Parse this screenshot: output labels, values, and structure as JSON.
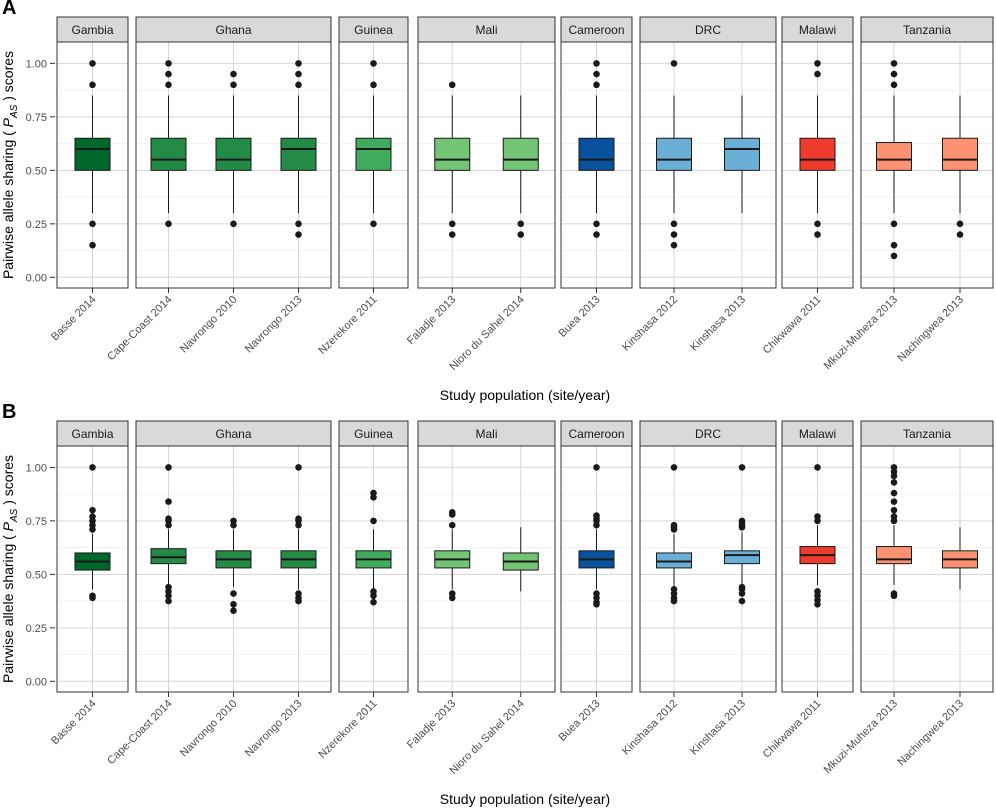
{
  "figure": {
    "ylabel_prefix": "Pairwise allele sharing ( ",
    "ylabel_symbol": "P",
    "ylabel_subscript": "AS",
    "ylabel_suffix": " ) scores",
    "xlabel": "Study population (site/year)"
  },
  "facets": [
    {
      "name": "Gambia",
      "populations": [
        "Basse 2014"
      ]
    },
    {
      "name": "Ghana",
      "populations": [
        "Cape-Coast 2014",
        "Navrongo 2010",
        "Navrongo 2013"
      ]
    },
    {
      "name": "Guinea",
      "populations": [
        "Nzerekore 2011"
      ]
    },
    {
      "name": "Mali",
      "populations": [
        "Faladje 2013",
        "Nioro du Sahel 2014"
      ]
    },
    {
      "name": "Cameroon",
      "populations": [
        "Buea 2013"
      ]
    },
    {
      "name": "DRC",
      "populations": [
        "Kinshasa 2012",
        "Kinshasa 2013"
      ]
    },
    {
      "name": "Malawi",
      "populations": [
        "Chikwawa 2011"
      ]
    },
    {
      "name": "Tanzania",
      "populations": [
        "Mkuzi-Muheza 2013",
        "Nachingwea 2013"
      ]
    }
  ],
  "colors": {
    "Basse 2014": "#00682c",
    "Cape-Coast 2014": "#238b45",
    "Navrongo 2010": "#238b45",
    "Navrongo 2013": "#238b45",
    "Nzerekore 2011": "#41ab5d",
    "Faladje 2013": "#74c476",
    "Nioro du Sahel 2014": "#74c476",
    "Buea 2013": "#08519c",
    "Kinshasa 2012": "#6baed6",
    "Kinshasa 2013": "#6baed6",
    "Chikwawa 2011": "#ef3b2c",
    "Mkuzi-Muheza 2013": "#fc9272",
    "Nachingwea 2013": "#fc9272"
  },
  "chart_data": [
    {
      "panel": "A",
      "type": "boxplot",
      "title": "",
      "xlabel": "Study population (site/year)",
      "ylabel": "Pairwise allele sharing (P_AS) scores",
      "ylim": [
        -0.05,
        1.1
      ],
      "yticks": [
        0.0,
        0.25,
        0.5,
        0.75,
        1.0
      ],
      "ytick_labels": [
        "0.00",
        "0.25",
        "0.50",
        "0.75",
        "1.00"
      ],
      "series": [
        {
          "facet": "Gambia",
          "name": "Basse 2014",
          "q1": 0.5,
          "median": 0.6,
          "q3": 0.65,
          "whisker_low": 0.3,
          "whisker_high": 0.85,
          "outliers": [
            0.15,
            0.25,
            0.9,
            1.0
          ]
        },
        {
          "facet": "Ghana",
          "name": "Cape-Coast 2014",
          "q1": 0.5,
          "median": 0.55,
          "q3": 0.65,
          "whisker_low": 0.3,
          "whisker_high": 0.85,
          "outliers": [
            0.25,
            0.9,
            0.95,
            1.0
          ]
        },
        {
          "facet": "Ghana",
          "name": "Navrongo 2010",
          "q1": 0.5,
          "median": 0.55,
          "q3": 0.65,
          "whisker_low": 0.3,
          "whisker_high": 0.85,
          "outliers": [
            0.25,
            0.9,
            0.95
          ]
        },
        {
          "facet": "Ghana",
          "name": "Navrongo 2013",
          "q1": 0.5,
          "median": 0.6,
          "q3": 0.65,
          "whisker_low": 0.3,
          "whisker_high": 0.85,
          "outliers": [
            0.2,
            0.25,
            0.9,
            0.95,
            1.0
          ]
        },
        {
          "facet": "Guinea",
          "name": "Nzerekore 2011",
          "q1": 0.5,
          "median": 0.6,
          "q3": 0.65,
          "whisker_low": 0.3,
          "whisker_high": 0.85,
          "outliers": [
            0.25,
            0.9,
            1.0
          ]
        },
        {
          "facet": "Mali",
          "name": "Faladje 2013",
          "q1": 0.5,
          "median": 0.55,
          "q3": 0.65,
          "whisker_low": 0.3,
          "whisker_high": 0.85,
          "outliers": [
            0.2,
            0.25,
            0.9
          ]
        },
        {
          "facet": "Mali",
          "name": "Nioro du Sahel 2014",
          "q1": 0.5,
          "median": 0.55,
          "q3": 0.65,
          "whisker_low": 0.3,
          "whisker_high": 0.85,
          "outliers": [
            0.2,
            0.25
          ]
        },
        {
          "facet": "Cameroon",
          "name": "Buea 2013",
          "q1": 0.5,
          "median": 0.55,
          "q3": 0.65,
          "whisker_low": 0.3,
          "whisker_high": 0.85,
          "outliers": [
            0.2,
            0.25,
            0.9,
            0.95,
            1.0
          ]
        },
        {
          "facet": "DRC",
          "name": "Kinshasa 2012",
          "q1": 0.5,
          "median": 0.55,
          "q3": 0.65,
          "whisker_low": 0.3,
          "whisker_high": 0.85,
          "outliers": [
            0.15,
            0.2,
            0.25,
            1.0
          ]
        },
        {
          "facet": "DRC",
          "name": "Kinshasa 2013",
          "q1": 0.5,
          "median": 0.6,
          "q3": 0.65,
          "whisker_low": 0.3,
          "whisker_high": 0.85,
          "outliers": []
        },
        {
          "facet": "Malawi",
          "name": "Chikwawa 2011",
          "q1": 0.5,
          "median": 0.55,
          "q3": 0.65,
          "whisker_low": 0.3,
          "whisker_high": 0.85,
          "outliers": [
            0.2,
            0.25,
            0.95,
            1.0
          ]
        },
        {
          "facet": "Tanzania",
          "name": "Mkuzi-Muheza 2013",
          "q1": 0.5,
          "median": 0.55,
          "q3": 0.63,
          "whisker_low": 0.3,
          "whisker_high": 0.85,
          "outliers": [
            0.1,
            0.15,
            0.25,
            0.9,
            0.95,
            1.0
          ]
        },
        {
          "facet": "Tanzania",
          "name": "Nachingwea 2013",
          "q1": 0.5,
          "median": 0.55,
          "q3": 0.65,
          "whisker_low": 0.3,
          "whisker_high": 0.85,
          "outliers": [
            0.2,
            0.25
          ]
        }
      ]
    },
    {
      "panel": "B",
      "type": "boxplot",
      "title": "",
      "xlabel": "Study population (site/year)",
      "ylabel": "Pairwise allele sharing (P_AS) scores",
      "ylim": [
        -0.05,
        1.1
      ],
      "yticks": [
        0.0,
        0.25,
        0.5,
        0.75,
        1.0
      ],
      "ytick_labels": [
        "0.00",
        "0.25",
        "0.50",
        "0.75",
        "1.00"
      ],
      "series": [
        {
          "facet": "Gambia",
          "name": "Basse 2014",
          "q1": 0.52,
          "median": 0.56,
          "q3": 0.6,
          "whisker_low": 0.43,
          "whisker_high": 0.69,
          "outliers": [
            0.39,
            0.4,
            0.71,
            0.73,
            0.75,
            0.77,
            0.8,
            1.0
          ]
        },
        {
          "facet": "Ghana",
          "name": "Cape-Coast 2014",
          "q1": 0.55,
          "median": 0.58,
          "q3": 0.62,
          "whisker_low": 0.45,
          "whisker_high": 0.71,
          "outliers": [
            0.375,
            0.4,
            0.42,
            0.44,
            0.73,
            0.75,
            0.76,
            0.84,
            1.0
          ]
        },
        {
          "facet": "Ghana",
          "name": "Navrongo 2010",
          "q1": 0.53,
          "median": 0.57,
          "q3": 0.61,
          "whisker_low": 0.44,
          "whisker_high": 0.71,
          "outliers": [
            0.33,
            0.36,
            0.41,
            0.73,
            0.75
          ]
        },
        {
          "facet": "Ghana",
          "name": "Navrongo 2013",
          "q1": 0.53,
          "median": 0.57,
          "q3": 0.61,
          "whisker_low": 0.43,
          "whisker_high": 0.71,
          "outliers": [
            0.375,
            0.39,
            0.41,
            0.73,
            0.75,
            0.76,
            1.0
          ]
        },
        {
          "facet": "Guinea",
          "name": "Nzerekore 2011",
          "q1": 0.53,
          "median": 0.57,
          "q3": 0.61,
          "whisker_low": 0.43,
          "whisker_high": 0.71,
          "outliers": [
            0.37,
            0.4,
            0.42,
            0.75,
            0.86,
            0.88
          ]
        },
        {
          "facet": "Mali",
          "name": "Faladje 2013",
          "q1": 0.53,
          "median": 0.57,
          "q3": 0.61,
          "whisker_low": 0.43,
          "whisker_high": 0.71,
          "outliers": [
            0.39,
            0.41,
            0.73,
            0.78,
            0.79
          ]
        },
        {
          "facet": "Mali",
          "name": "Nioro du Sahel 2014",
          "q1": 0.52,
          "median": 0.56,
          "q3": 0.6,
          "whisker_low": 0.42,
          "whisker_high": 0.72,
          "outliers": []
        },
        {
          "facet": "Cameroon",
          "name": "Buea 2013",
          "q1": 0.53,
          "median": 0.57,
          "q3": 0.61,
          "whisker_low": 0.43,
          "whisker_high": 0.71,
          "outliers": [
            0.36,
            0.37,
            0.39,
            0.41,
            0.73,
            0.75,
            0.76,
            0.775,
            1.0
          ]
        },
        {
          "facet": "DRC",
          "name": "Kinshasa 2012",
          "q1": 0.53,
          "median": 0.56,
          "q3": 0.6,
          "whisker_low": 0.44,
          "whisker_high": 0.69,
          "outliers": [
            0.375,
            0.39,
            0.41,
            0.43,
            0.71,
            0.72,
            0.73,
            1.0
          ]
        },
        {
          "facet": "DRC",
          "name": "Kinshasa 2013",
          "q1": 0.55,
          "median": 0.59,
          "q3": 0.61,
          "whisker_low": 0.45,
          "whisker_high": 0.7,
          "outliers": [
            0.375,
            0.41,
            0.43,
            0.44,
            0.72,
            0.73,
            0.74,
            0.75,
            1.0
          ]
        },
        {
          "facet": "Malawi",
          "name": "Chikwawa 2011",
          "q1": 0.55,
          "median": 0.59,
          "q3": 0.63,
          "whisker_low": 0.45,
          "whisker_high": 0.73,
          "outliers": [
            0.36,
            0.38,
            0.4,
            0.42,
            0.75,
            0.77,
            1.0
          ]
        },
        {
          "facet": "Tanzania",
          "name": "Mkuzi-Muheza 2013",
          "q1": 0.55,
          "median": 0.57,
          "q3": 0.63,
          "whisker_low": 0.45,
          "whisker_high": 0.73,
          "outliers": [
            0.4,
            0.41,
            0.75,
            0.77,
            0.8,
            0.84,
            0.88,
            0.93,
            0.96,
            0.98,
            1.0
          ]
        },
        {
          "facet": "Tanzania",
          "name": "Nachingwea 2013",
          "q1": 0.53,
          "median": 0.57,
          "q3": 0.61,
          "whisker_low": 0.43,
          "whisker_high": 0.72,
          "outliers": []
        }
      ]
    }
  ]
}
